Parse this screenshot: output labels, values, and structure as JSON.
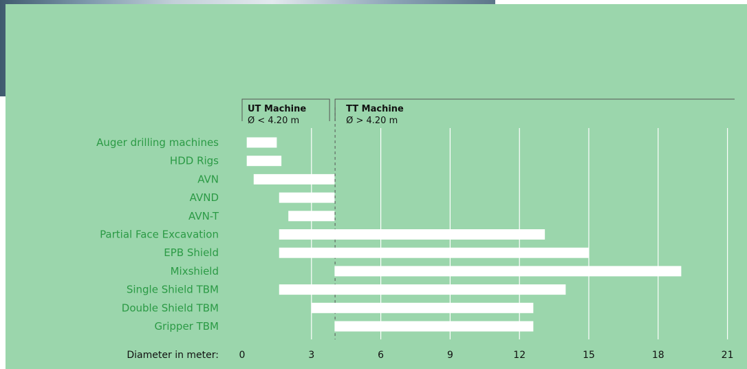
{
  "chart_data": {
    "type": "bar",
    "orientation": "horizontal",
    "range_bars": true,
    "categories": [
      "Auger drilling machines",
      "HDD Rigs",
      "AVN",
      "AVND",
      "AVN-T",
      "Partial Face Excavation",
      "EPB Shield",
      "Mixshield",
      "Single Shield TBM",
      "Double Shield TBM",
      "Gripper TBM"
    ],
    "ranges": [
      [
        0.2,
        1.5
      ],
      [
        0.2,
        1.7
      ],
      [
        0.5,
        4.0
      ],
      [
        1.6,
        4.0
      ],
      [
        2.0,
        4.0
      ],
      [
        1.6,
        13.1
      ],
      [
        1.6,
        15.0
      ],
      [
        4.0,
        19.0
      ],
      [
        1.6,
        14.0
      ],
      [
        3.0,
        12.6
      ],
      [
        4.0,
        12.6
      ]
    ],
    "xlabel": "Diameter in meter:",
    "xticks": [
      0,
      3,
      6,
      9,
      12,
      15,
      18,
      21
    ],
    "xlim": [
      0,
      21
    ],
    "grid": true,
    "threshold": 4.2,
    "zones": [
      {
        "title": "UT Machine",
        "subtitle": "Ø < 4.20 m"
      },
      {
        "title": "TT Machine",
        "subtitle": "Ø > 4.20 m"
      }
    ],
    "colors": {
      "panel_background": "#9bd6ac",
      "bar": "#ffffff",
      "label": "#2b9a45",
      "grid": "#ffffff",
      "threshold_line": "#555555"
    }
  }
}
